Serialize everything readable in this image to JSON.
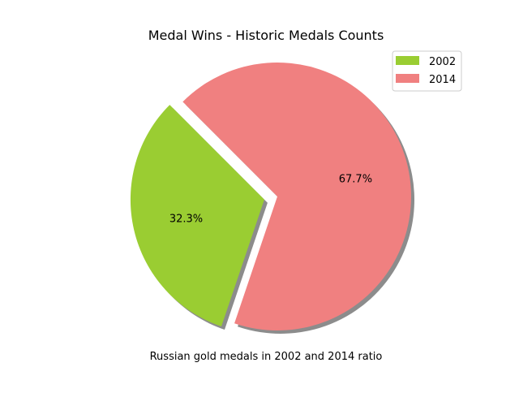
{
  "chart_data": {
    "type": "pie",
    "title": "Medal Wins - Historic Medals Counts",
    "xlabel": "Russian gold medals in 2002 and 2014 ratio",
    "categories": [
      "2002",
      "2014"
    ],
    "values": [
      32.3,
      67.7
    ],
    "labels": [
      "32.3%",
      "67.7%"
    ],
    "colors": [
      "#9ACD32",
      "#F08080"
    ],
    "exploded": [
      true,
      false
    ],
    "shadow": true,
    "legend": {
      "placement": "top-right",
      "entries": [
        "2002",
        "2014"
      ]
    }
  }
}
